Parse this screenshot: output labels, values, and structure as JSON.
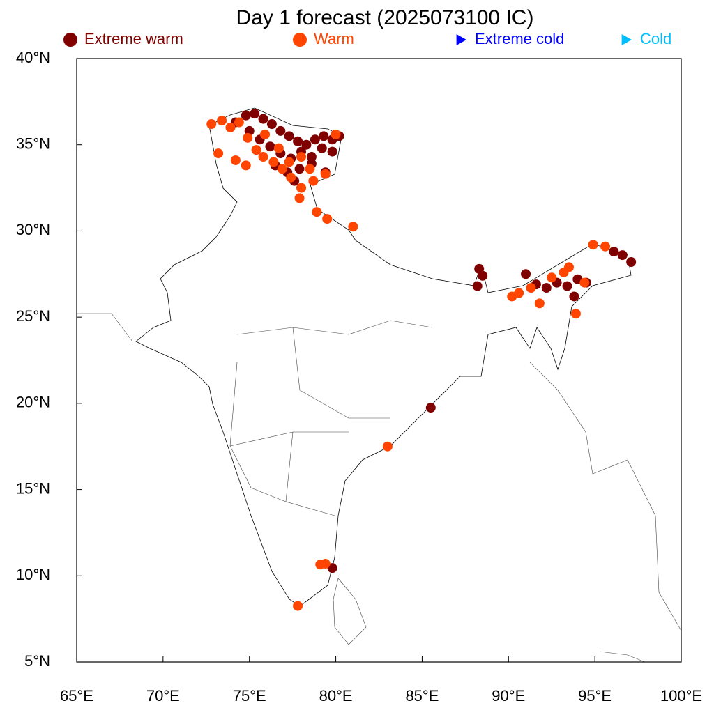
{
  "chart_data": {
    "type": "scatter",
    "title": "Day 1 forecast (2025073100 IC)",
    "xlim": [
      65,
      100
    ],
    "ylim": [
      5,
      40
    ],
    "xticks": [
      {
        "value": 65,
        "label": "65°E"
      },
      {
        "value": 70,
        "label": "70°E"
      },
      {
        "value": 75,
        "label": "75°E"
      },
      {
        "value": 80,
        "label": "80°E"
      },
      {
        "value": 85,
        "label": "85°E"
      },
      {
        "value": 90,
        "label": "90°E"
      },
      {
        "value": 95,
        "label": "95°E"
      },
      {
        "value": 100,
        "label": "100°E"
      }
    ],
    "yticks": [
      {
        "value": 5,
        "label": "5°N"
      },
      {
        "value": 10,
        "label": "10°N"
      },
      {
        "value": 15,
        "label": "15°N"
      },
      {
        "value": 20,
        "label": "20°N"
      },
      {
        "value": 25,
        "label": "25°N"
      },
      {
        "value": 30,
        "label": "30°N"
      },
      {
        "value": 35,
        "label": "35°N"
      },
      {
        "value": 40,
        "label": "40°N"
      }
    ],
    "grid": false,
    "series": [
      {
        "name": "Extreme warm",
        "color": "#800000",
        "marker": "circle",
        "x": [
          74.2,
          74.8,
          75.3,
          75.8,
          76.3,
          76.8,
          77.3,
          77.8,
          78.3,
          78.8,
          79.3,
          79.8,
          80.2,
          75.0,
          75.6,
          76.2,
          76.8,
          77.4,
          78.0,
          78.6,
          79.2,
          79.8,
          76.5,
          77.2,
          77.9,
          78.6,
          79.4,
          77.6,
          88.3,
          88.5,
          88.2,
          91.0,
          91.6,
          92.2,
          92.8,
          93.4,
          94.0,
          94.5,
          93.8,
          96.1,
          96.6,
          97.1,
          85.5,
          79.8
        ],
        "y": [
          36.3,
          36.7,
          36.8,
          36.5,
          36.2,
          35.8,
          35.5,
          35.2,
          35.0,
          35.3,
          35.5,
          35.3,
          35.5,
          35.8,
          35.3,
          34.9,
          34.5,
          34.2,
          34.6,
          34.3,
          34.8,
          34.6,
          33.8,
          33.4,
          33.6,
          33.9,
          33.4,
          32.9,
          27.8,
          27.4,
          26.8,
          27.5,
          26.9,
          26.7,
          27.0,
          26.8,
          27.2,
          27.0,
          26.2,
          28.8,
          28.6,
          28.2,
          19.75,
          10.45
        ]
      },
      {
        "name": "Warm",
        "color": "#ff4500",
        "marker": "circle",
        "x": [
          72.8,
          73.4,
          73.9,
          74.4,
          74.9,
          75.4,
          75.9,
          76.4,
          76.9,
          77.4,
          78.0,
          78.7,
          79.4,
          80.0,
          73.2,
          74.2,
          74.8,
          75.8,
          76.7,
          77.3,
          78.0,
          78.5,
          77.9,
          78.9,
          79.5,
          81.0,
          83.0,
          77.8,
          79.1,
          79.4,
          90.2,
          90.6,
          91.3,
          91.8,
          92.5,
          93.2,
          93.9,
          94.4,
          94.9,
          95.6,
          93.5
        ],
        "y": [
          36.2,
          36.4,
          36.0,
          36.3,
          35.4,
          34.7,
          35.6,
          34.0,
          33.6,
          33.1,
          32.5,
          32.9,
          33.3,
          35.6,
          34.5,
          34.1,
          33.8,
          34.3,
          34.8,
          34.0,
          34.3,
          33.6,
          31.9,
          31.1,
          30.7,
          30.25,
          17.5,
          8.25,
          10.65,
          10.7,
          26.2,
          26.4,
          26.7,
          25.8,
          27.3,
          27.6,
          25.2,
          27.0,
          29.2,
          29.1,
          27.9
        ]
      },
      {
        "name": "Extreme cold",
        "color": "#0000ff",
        "marker": "triangle",
        "x": [],
        "y": []
      },
      {
        "name": "Cold",
        "color": "#00bfff",
        "marker": "triangle",
        "x": [],
        "y": []
      }
    ]
  }
}
